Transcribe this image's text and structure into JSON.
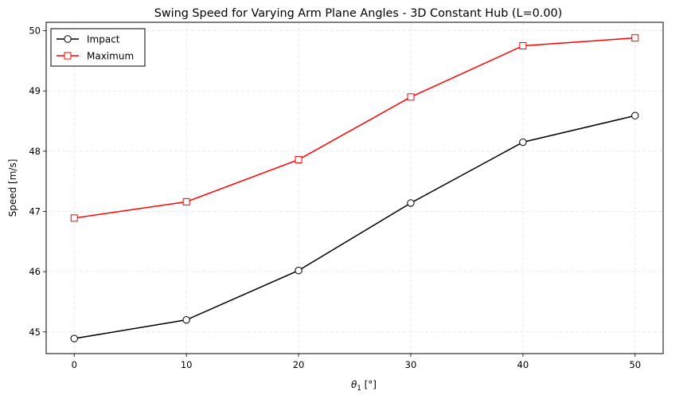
{
  "chart_data": {
    "type": "line",
    "title": "Swing Speed for Varying Arm Plane Angles - 3D Constant Hub (L=0.00)",
    "xlabel": "θ",
    "xlabel_subscript": "1",
    "xlabel_unit": " [°]",
    "ylabel": "Speed [m/s]",
    "x": [
      0,
      10,
      20,
      30,
      40,
      50
    ],
    "xlim": [
      -2.5,
      52.5
    ],
    "ylim": [
      44.64,
      50.14
    ],
    "xticks": [
      0,
      10,
      20,
      30,
      40,
      50
    ],
    "yticks": [
      45,
      46,
      47,
      48,
      49,
      50
    ],
    "grid": true,
    "legend_position": "top-left",
    "series": [
      {
        "name": "Impact",
        "color": "#000000",
        "marker": "circle",
        "values": [
          44.89,
          45.2,
          46.02,
          47.14,
          48.15,
          48.59
        ]
      },
      {
        "name": "Maximum",
        "color": "#ff0000",
        "marker": "square",
        "values": [
          46.89,
          47.16,
          47.86,
          48.9,
          49.75,
          49.88
        ]
      }
    ]
  }
}
